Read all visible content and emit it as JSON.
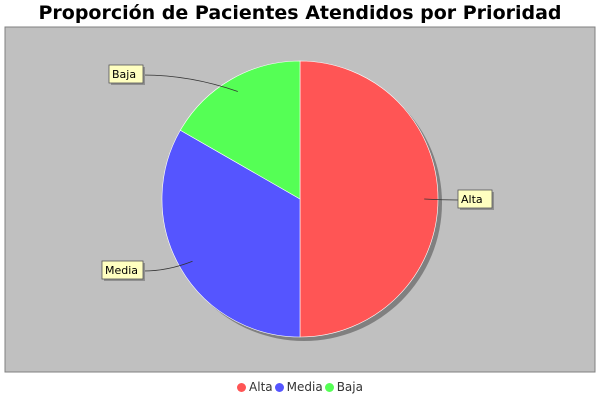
{
  "chart_data": {
    "type": "pie",
    "title": "Proporción de Pacientes Atendidos por Prioridad",
    "slices": [
      {
        "label": "Alta",
        "value": 50,
        "color": "#ff5555"
      },
      {
        "label": "Media",
        "value": 33.3,
        "color": "#5555ff"
      },
      {
        "label": "Baja",
        "value": 16.7,
        "color": "#55ff55"
      }
    ],
    "legend_position": "bottom",
    "plot_background": "#c0c0c0",
    "label_background": "#ffffc0"
  }
}
